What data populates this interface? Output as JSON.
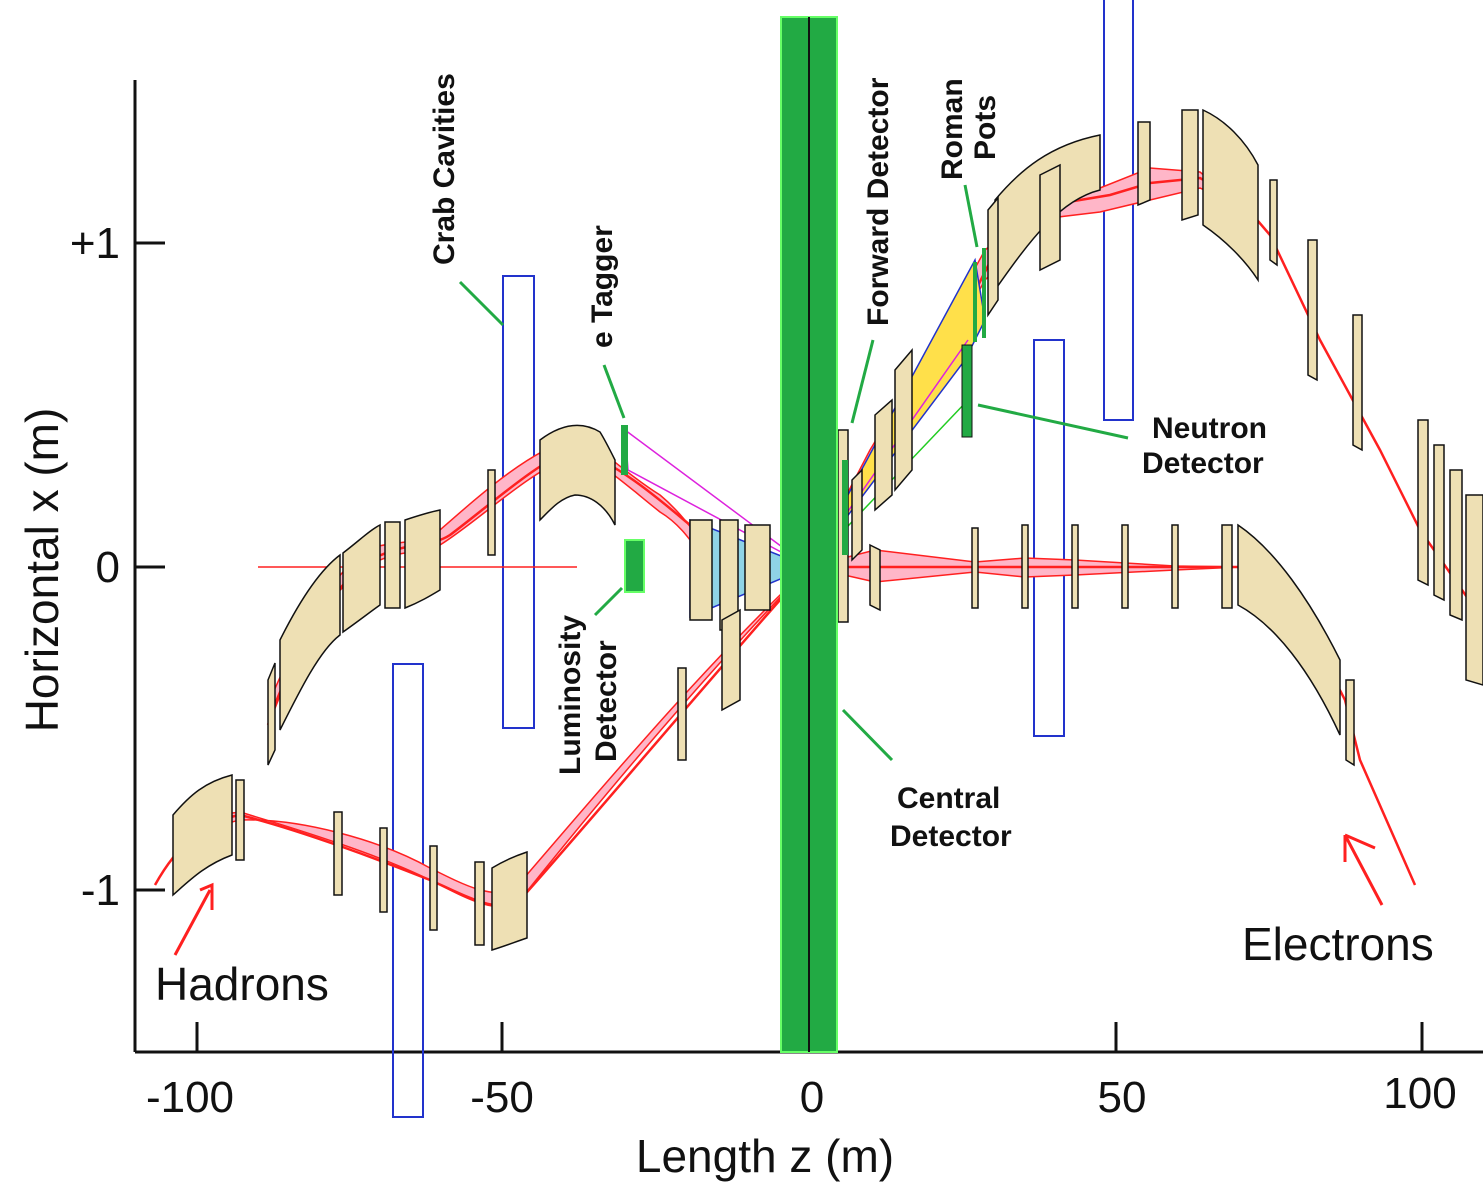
{
  "chart_data": {
    "type": "diagram",
    "xlabel": "Length z (m)",
    "ylabel": "Horizontal x (m)",
    "x_ticks": [
      "-100",
      "-50",
      "0",
      "50",
      "100"
    ],
    "y_ticks": [
      "+1",
      "0",
      "-1"
    ],
    "xlim": [
      -110,
      110
    ],
    "ylim": [
      -1.5,
      1.5
    ]
  },
  "labels": {
    "crab_cavities": "Crab Cavities",
    "e_tagger": "e Tagger",
    "forward_detector": "Forward Detector",
    "roman": "Roman",
    "pots": "Pots",
    "neutron": "Neutron",
    "detector_n": "Detector",
    "luminosity": "Luminosity",
    "detector_l": "Detector",
    "central": "Central",
    "detector_c": "Detector",
    "hadrons": "Hadrons",
    "electrons": "Electrons"
  },
  "colors": {
    "beam": "#ff2020",
    "envelope": "#ffb6c8",
    "magnet": "#eee0b4",
    "detector": "#22aa44",
    "cavity": "#2233cc",
    "fan": "#8fd3e6"
  }
}
